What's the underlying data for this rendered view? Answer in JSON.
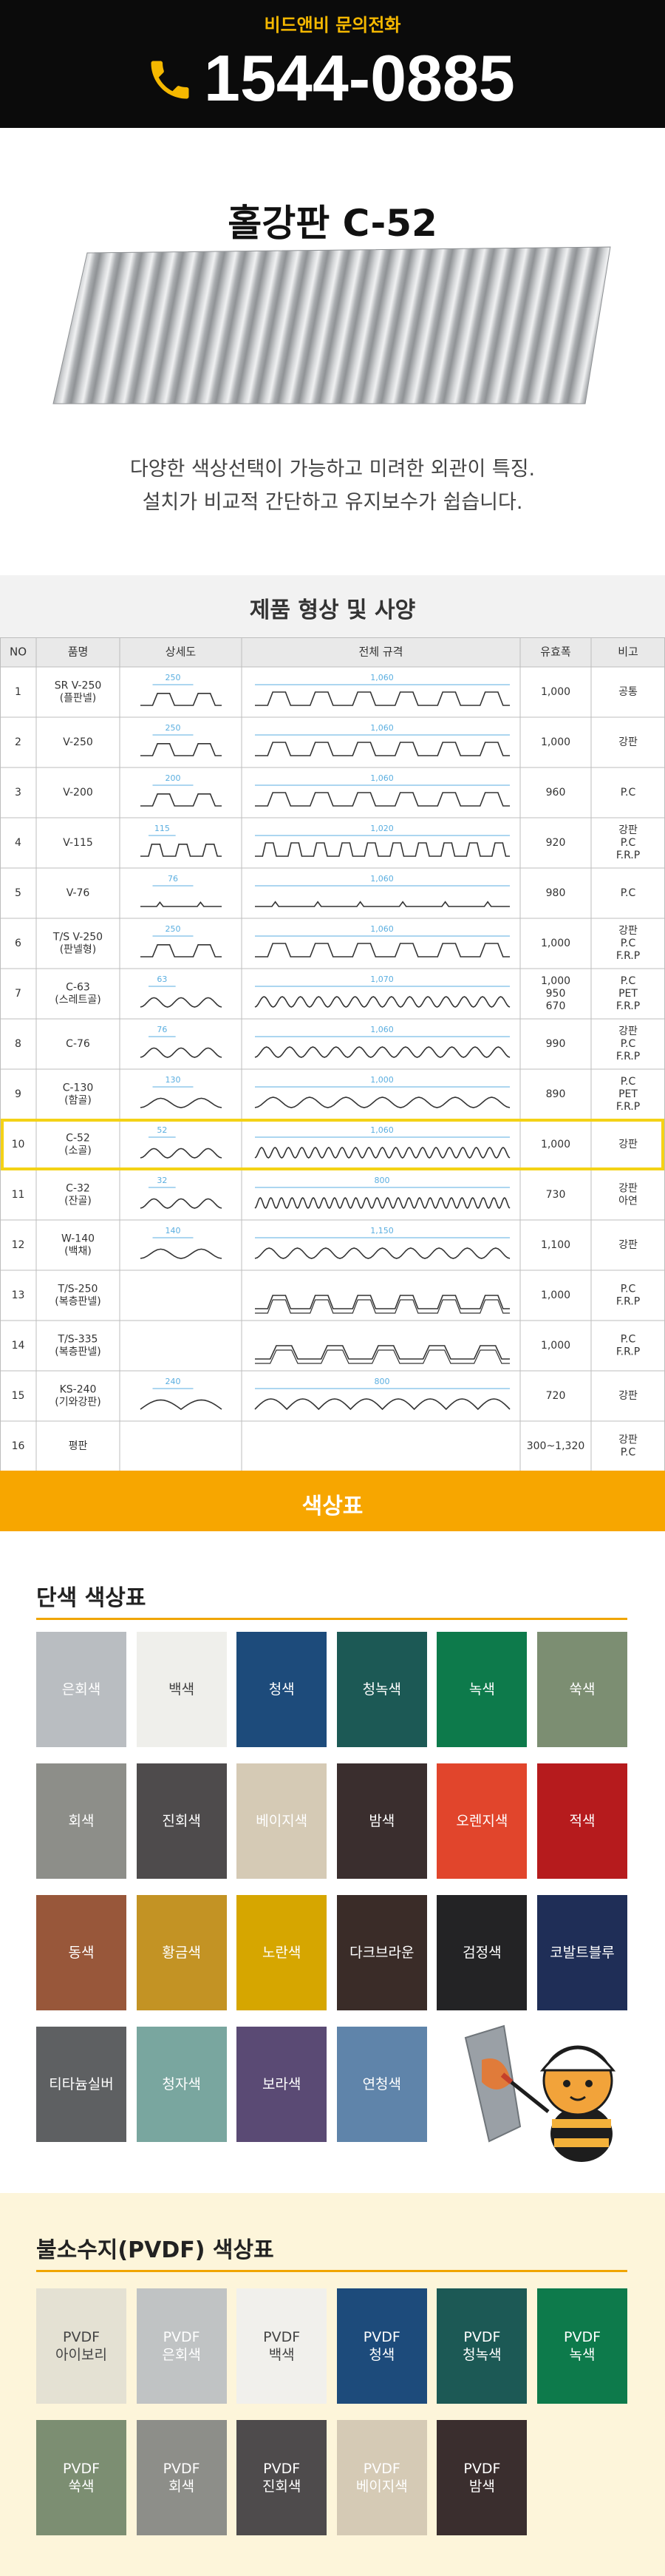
{
  "header": {
    "label": "비드앤비 문의전화",
    "phone": "1544-0885"
  },
  "product": {
    "title": "홀강판 C-52",
    "description": [
      "다양한 색상선택이 가능하고 미려한 외관이 특징.",
      "설치가 비교적 간단하고 유지보수가 쉽습니다."
    ]
  },
  "spec": {
    "title": "제품 형상 및 사양",
    "columns": [
      "NO",
      "품명",
      "상세도",
      "전체 규격",
      "유효폭",
      "비고"
    ],
    "rows": [
      {
        "no": "1",
        "name": [
          "SR V-250",
          "(플판넬)"
        ],
        "detail": "250",
        "width": "1,060",
        "effective": [
          "1,000"
        ],
        "note": [
          "공통"
        ]
      },
      {
        "no": "2",
        "name": [
          "V-250"
        ],
        "detail": "250",
        "width": "1,060",
        "effective": [
          "1,000"
        ],
        "note": [
          "강판"
        ]
      },
      {
        "no": "3",
        "name": [
          "V-200"
        ],
        "detail": "200",
        "width": "1,060",
        "effective": [
          "960"
        ],
        "note": [
          "P.C"
        ]
      },
      {
        "no": "4",
        "name": [
          "V-115"
        ],
        "detail": "115",
        "width": "1,020",
        "effective": [
          "920"
        ],
        "note": [
          "강판",
          "P.C",
          "F.R.P"
        ]
      },
      {
        "no": "5",
        "name": [
          "V-76"
        ],
        "detail": "76",
        "width": "1,060",
        "effective": [
          "980"
        ],
        "note": [
          "P.C"
        ]
      },
      {
        "no": "6",
        "name": [
          "T/S V-250",
          "(판넬형)"
        ],
        "detail": "250",
        "width": "1,060",
        "effective": [
          "1,000"
        ],
        "note": [
          "강판",
          "P.C",
          "F.R.P"
        ]
      },
      {
        "no": "7",
        "name": [
          "C-63",
          "(스레트골)"
        ],
        "detail": "63",
        "width": "1,070",
        "effective": [
          "1,000",
          "950",
          "670"
        ],
        "note": [
          "P.C",
          "PET",
          "F.R.P"
        ]
      },
      {
        "no": "8",
        "name": [
          "C-76"
        ],
        "detail": "76",
        "width": "1,060",
        "effective": [
          "990"
        ],
        "note": [
          "강판",
          "P.C",
          "F.R.P"
        ]
      },
      {
        "no": "9",
        "name": [
          "C-130",
          "(함골)"
        ],
        "detail": "130",
        "width": "1,000",
        "effective": [
          "890"
        ],
        "note": [
          "P.C",
          "PET",
          "F.R.P"
        ]
      },
      {
        "no": "10",
        "name": [
          "C-52",
          "(소골)"
        ],
        "detail": "52",
        "width": "1,060",
        "effective": [
          "1,000"
        ],
        "note": [
          "강판"
        ],
        "highlight": true
      },
      {
        "no": "11",
        "name": [
          "C-32",
          "(잔골)"
        ],
        "detail": "32",
        "width": "800",
        "effective": [
          "730"
        ],
        "note": [
          "강판",
          "아연"
        ]
      },
      {
        "no": "12",
        "name": [
          "W-140",
          "(백채)"
        ],
        "detail": "140",
        "width": "1,150",
        "effective": [
          "1,100"
        ],
        "note": [
          "강판"
        ]
      },
      {
        "no": "13",
        "name": [
          "T/S-250",
          "(복층판넬)"
        ],
        "effective": [
          "1,000"
        ],
        "note": [
          "P.C",
          "F.R.P"
        ]
      },
      {
        "no": "14",
        "name": [
          "T/S-335",
          "(복층판넬)"
        ],
        "effective": [
          "1,000"
        ],
        "note": [
          "P.C",
          "F.R.P"
        ]
      },
      {
        "no": "15",
        "name": [
          "KS-240",
          "(기와강판)"
        ],
        "detail": "240",
        "width": "800",
        "effective": [
          "720"
        ],
        "note": [
          "강판"
        ]
      },
      {
        "no": "16",
        "name": [
          "평판"
        ],
        "effective": [
          "300~1,320"
        ],
        "note": [
          "강판",
          "P.C"
        ]
      }
    ]
  },
  "colors": {
    "banner": "색상표",
    "solid": {
      "title": "단색 색상표",
      "swatches": [
        {
          "label": [
            "은회색"
          ],
          "color": "#b9bdc1",
          "text_color": "#ffffff"
        },
        {
          "label": [
            "백색"
          ],
          "color": "#efefeb",
          "text_color": "#444444"
        },
        {
          "label": [
            "청색"
          ],
          "color": "#1d4b7b",
          "text_color": "#ffffff"
        },
        {
          "label": [
            "청녹색"
          ],
          "color": "#1c5955",
          "text_color": "#ffffff"
        },
        {
          "label": [
            "녹색"
          ],
          "color": "#0d7a4b",
          "text_color": "#ffffff"
        },
        {
          "label": [
            "쑥색"
          ],
          "color": "#7c8e72",
          "text_color": "#ffffff"
        },
        {
          "label": [
            "회색"
          ],
          "color": "#8d8e89",
          "text_color": "#ffffff"
        },
        {
          "label": [
            "진회색"
          ],
          "color": "#4e4b4c",
          "text_color": "#ffffff"
        },
        {
          "label": [
            "베이지색"
          ],
          "color": "#d5cab5",
          "text_color": "#ffffff"
        },
        {
          "label": [
            "밤색"
          ],
          "color": "#3a2e2e",
          "text_color": "#ffffff"
        },
        {
          "label": [
            "오렌지색"
          ],
          "color": "#e1452c",
          "text_color": "#ffffff"
        },
        {
          "label": [
            "적색"
          ],
          "color": "#b61b1d",
          "text_color": "#ffffff"
        },
        {
          "label": [
            "동색"
          ],
          "color": "#98573a",
          "text_color": "#ffffff"
        },
        {
          "label": [
            "황금색"
          ],
          "color": "#c39324",
          "text_color": "#ffffff"
        },
        {
          "label": [
            "노란색"
          ],
          "color": "#d6a600",
          "text_color": "#ffffff"
        },
        {
          "label": [
            "다크브라운"
          ],
          "color": "#3a2c28",
          "text_color": "#ffffff"
        },
        {
          "label": [
            "검정색"
          ],
          "color": "#232325",
          "text_color": "#ffffff"
        },
        {
          "label": [
            "코발트블루"
          ],
          "color": "#1f2e57",
          "text_color": "#ffffff"
        },
        {
          "label": [
            "티타늄실버"
          ],
          "color": "#5e6062",
          "text_color": "#ffffff"
        },
        {
          "label": [
            "청자색"
          ],
          "color": "#79a69f",
          "text_color": "#ffffff"
        },
        {
          "label": [
            "보라색"
          ],
          "color": "#5a4a74",
          "text_color": "#ffffff"
        },
        {
          "label": [
            "연청색"
          ],
          "color": "#5f84aa",
          "text_color": "#ffffff"
        }
      ]
    },
    "pvdf": {
      "title": "불소수지(PVDF) 색상표",
      "swatches": [
        {
          "label": [
            "PVDF",
            "아이보리"
          ],
          "color": "#e4e1d3",
          "text_color": "#444444"
        },
        {
          "label": [
            "PVDF",
            "은회색"
          ],
          "color": "#c0c3c4",
          "text_color": "#ffffff"
        },
        {
          "label": [
            "PVDF",
            "백색"
          ],
          "color": "#f1f0ec",
          "text_color": "#444444"
        },
        {
          "label": [
            "PVDF",
            "청색"
          ],
          "color": "#1d4b7b",
          "text_color": "#ffffff"
        },
        {
          "label": [
            "PVDF",
            "청녹색"
          ],
          "color": "#1c5955",
          "text_color": "#ffffff"
        },
        {
          "label": [
            "PVDF",
            "녹색"
          ],
          "color": "#0d7a4b",
          "text_color": "#ffffff"
        },
        {
          "label": [
            "PVDF",
            "쑥색"
          ],
          "color": "#7c8e72",
          "text_color": "#ffffff"
        },
        {
          "label": [
            "PVDF",
            "회색"
          ],
          "color": "#8d8e89",
          "text_color": "#ffffff"
        },
        {
          "label": [
            "PVDF",
            "진회색"
          ],
          "color": "#4e4b4c",
          "text_color": "#ffffff"
        },
        {
          "label": [
            "PVDF",
            "베이지색"
          ],
          "color": "#d5cab5",
          "text_color": "#ffffff"
        },
        {
          "label": [
            "PVDF",
            "밤색"
          ],
          "color": "#3a2e2e",
          "text_color": "#ffffff"
        }
      ]
    }
  }
}
